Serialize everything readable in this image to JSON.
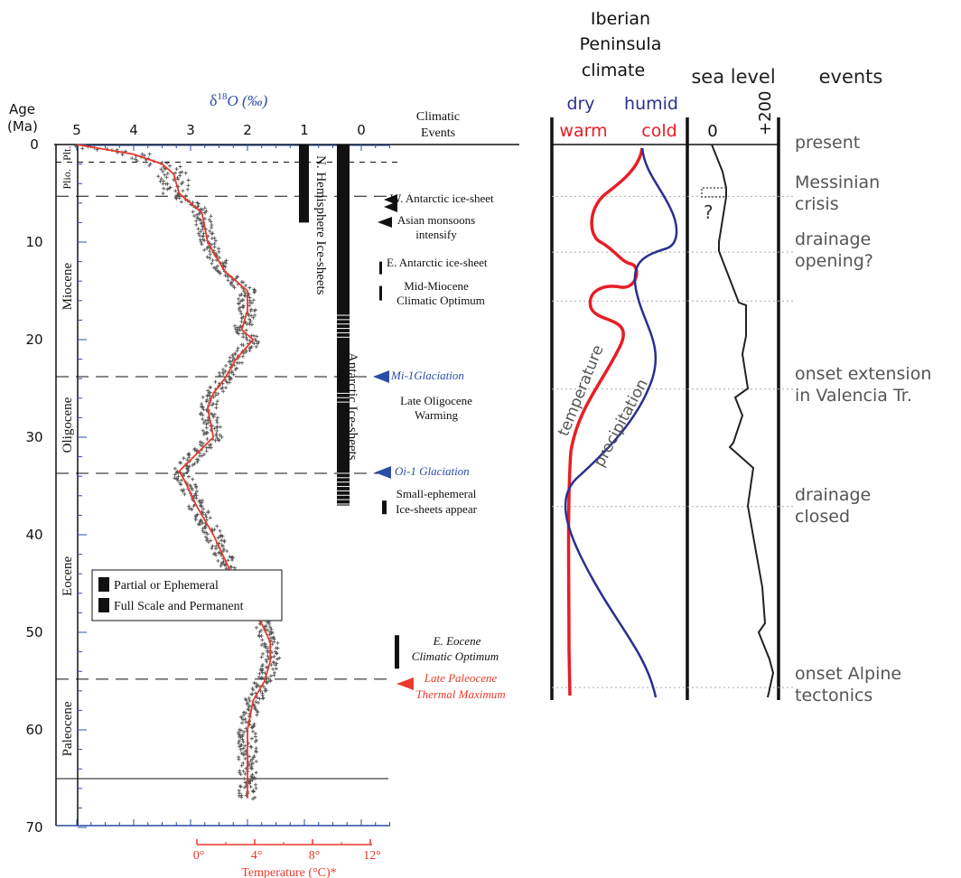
{
  "chart_data": [
    {
      "type": "line",
      "panel": "left",
      "y_axis": {
        "label_line1": "Age",
        "label_line2": "(Ma)",
        "range": [
          0,
          70
        ],
        "direction": "down",
        "ticks": [
          0,
          10,
          20,
          30,
          40,
          50,
          60,
          70
        ]
      },
      "x_axis_top": {
        "label_prefix": "δ",
        "label_sup": "18",
        "label_suffix": "O (‰)",
        "reversed": true,
        "ticks": [
          5,
          4,
          3,
          2,
          1,
          0
        ]
      },
      "x_axis_bottom": {
        "label": "Temperature (°C)*",
        "ticks": [
          "0°",
          "4°",
          "8°",
          "12°"
        ],
        "color": "#e8392a"
      },
      "events_header_line1": "Climatic",
      "events_header_line2": "Events",
      "epochs": [
        {
          "name": "Plt.",
          "from": 0,
          "to": 1.8
        },
        {
          "name": "Plio.",
          "from": 1.8,
          "to": 5.3
        },
        {
          "name": "Miocene",
          "from": 5.3,
          "to": 23.8
        },
        {
          "name": "Oligocene",
          "from": 23.8,
          "to": 33.7
        },
        {
          "name": "Eocene",
          "from": 33.7,
          "to": 54.8
        },
        {
          "name": "Paleocene",
          "from": 54.8,
          "to": 65
        }
      ],
      "series": [
        {
          "name": "δ18O (‰)",
          "color": "#e8392a",
          "x": [
            5.0,
            4.5,
            4.0,
            3.5,
            3.3,
            3.2,
            3.0,
            2.8,
            2.7,
            2.4,
            2.2,
            2.0,
            2.0,
            2.1,
            1.9,
            2.2,
            2.4,
            2.6,
            2.7,
            2.6,
            3.2,
            3.1,
            2.9,
            2.6,
            2.2,
            1.8,
            1.6,
            1.6,
            1.7,
            1.9,
            2.0,
            2.0
          ],
          "y": [
            0,
            0.5,
            1,
            2,
            3,
            5,
            6,
            7,
            10,
            13,
            14,
            15,
            17,
            19,
            20,
            22,
            24,
            25.5,
            27,
            30,
            33.5,
            34.5,
            37,
            40,
            45,
            48.5,
            51,
            53,
            55,
            57,
            60,
            67
          ]
        }
      ],
      "ice_sheet_labels": {
        "north": "N. Hemisphere Ice-sheets",
        "antarctic": "Antarctic Ice-sheets"
      },
      "ice_sheets": {
        "north": {
          "from": 0,
          "to": 8
        },
        "antarctic": {
          "from": 0,
          "to": 37
        }
      },
      "event_labels": [
        {
          "text": "W. Antarctic ice-sheet",
          "age": 5.5,
          "color": "#111111",
          "italic": false
        },
        {
          "text": "Asian monsoons",
          "age": 7.5,
          "color": "#111111",
          "italic": false
        },
        {
          "text": "intensify",
          "age": 9,
          "color": "#111111",
          "italic": false
        },
        {
          "text": "E. Antarctic ice-sheet",
          "age": 12,
          "color": "#111111",
          "italic": false
        },
        {
          "text": "Mid-Miocene",
          "age": 14.6,
          "color": "#111111",
          "italic": false
        },
        {
          "text": "Climatic Optimum",
          "age": 16,
          "color": "#111111",
          "italic": false
        },
        {
          "text": "Mi-1Glaciation",
          "age": 23.8,
          "color": "#2a4da8",
          "italic": true
        },
        {
          "text": "Late Oligocene",
          "age": 26.5,
          "color": "#111111",
          "italic": false
        },
        {
          "text": "Warming",
          "age": 27.9,
          "color": "#111111",
          "italic": false
        },
        {
          "text": "Oi-1 Glaciation",
          "age": 33.6,
          "color": "#2a4da8",
          "italic": true
        },
        {
          "text": "Small-ephemeral",
          "age": 35.8,
          "color": "#111111",
          "italic": false
        },
        {
          "text": "Ice-sheets appear",
          "age": 37.2,
          "color": "#111111",
          "italic": false
        },
        {
          "text": "E. Eocene",
          "age": 51,
          "color": "#111111",
          "italic": true
        },
        {
          "text": "Climatic Optimum",
          "age": 52.5,
          "color": "#111111",
          "italic": true
        },
        {
          "text": "Late Paleocene",
          "age": 54.8,
          "color": "#e8392a",
          "italic": true
        },
        {
          "text": "Thermal Maximum",
          "age": 56.2,
          "color": "#e8392a",
          "italic": true
        }
      ],
      "legend": [
        {
          "label": "Partial or Ephemeral"
        },
        {
          "label": "Full Scale and Permanent"
        }
      ]
    },
    {
      "type": "line",
      "panel": "right",
      "header": {
        "line1": "Iberian",
        "line2": "Peninsula",
        "line3": "climate"
      },
      "columns": {
        "sea_level": "sea level",
        "events": "events"
      },
      "climate_axis": {
        "dry": "dry",
        "humid": "humid",
        "warm": "warm",
        "cold": "cold"
      },
      "sea_level_ticks": [
        "0",
        "+200"
      ],
      "curve_labels": {
        "temperature": "temperature",
        "precipitation": "precipitation"
      },
      "question_mark": "?",
      "series": [
        {
          "name": "temperature",
          "color": "#e81d25"
        },
        {
          "name": "precipitation",
          "color": "#2b2f8f"
        },
        {
          "name": "sea level",
          "color": "#222222"
        }
      ],
      "events": [
        {
          "line1": "present",
          "line2": "",
          "age": 0
        },
        {
          "line1": "Messinian",
          "line2": "crisis",
          "age": 5.3
        },
        {
          "line1": "drainage",
          "line2": "opening?",
          "age": 11
        },
        {
          "line1": "onset extension",
          "line2": "in Valencia Tr.",
          "age": 25
        },
        {
          "line1": "drainage",
          "line2": "closed",
          "age": 37
        },
        {
          "line1": "onset Alpine",
          "line2": "tectonics",
          "age": 55.5
        }
      ]
    }
  ]
}
